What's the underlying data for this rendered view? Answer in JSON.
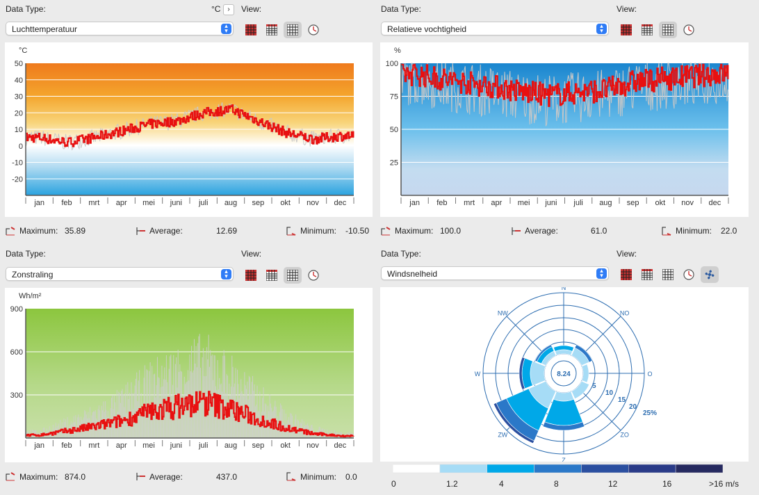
{
  "panels": [
    {
      "data_type_label": "Data Type:",
      "view_label": "View:",
      "unit_label": "°C",
      "unit_arrow": "›",
      "selected": "Luchttemperatuur",
      "unit": "°C",
      "stats": {
        "max_label": "Maximum:",
        "max": "35.89",
        "avg_label": "Average:",
        "avg": "12.69",
        "min_label": "Minimum:",
        "min": "-10.50"
      }
    },
    {
      "data_type_label": "Data Type:",
      "view_label": "View:",
      "selected": "Relatieve vochtigheid",
      "unit": "%",
      "stats": {
        "max_label": "Maximum:",
        "max": "100.0",
        "avg_label": "Average:",
        "avg": "61.0",
        "min_label": "Minimum:",
        "min": "22.0"
      }
    },
    {
      "data_type_label": "Data Type:",
      "view_label": "View:",
      "selected": "Zonstraling",
      "unit": "Wh/m²",
      "stats": {
        "max_label": "Maximum:",
        "max": "874.0",
        "avg_label": "Average:",
        "avg": "437.0",
        "min_label": "Minimum:",
        "min": "0.0"
      }
    },
    {
      "data_type_label": "Data Type:",
      "view_label": "View:",
      "selected": "Windsnelheid",
      "center_value": "8.24",
      "directions": [
        "N",
        "NO",
        "O",
        "ZO",
        "Z",
        "ZW",
        "W",
        "NW"
      ],
      "rings": [
        "5",
        "10",
        "15",
        "20",
        "25%"
      ],
      "legend": [
        "0",
        "1.2",
        "4",
        "8",
        "12",
        "16",
        ">16 m/s"
      ],
      "legend_colors": [
        "#ffffff",
        "#a6dcf6",
        "#00a8e8",
        "#2b78c8",
        "#2b4fa0",
        "#2a3b88",
        "#262a60"
      ]
    }
  ],
  "months": [
    "jan",
    "feb",
    "mrt",
    "apr",
    "mei",
    "juni",
    "juli",
    "aug",
    "sep",
    "okt",
    "nov",
    "dec"
  ],
  "chart_data": [
    {
      "type": "line",
      "title": "",
      "ylabel": "°C",
      "ylim": [
        -30,
        50
      ],
      "yticks": [
        "50",
        "40",
        "30",
        "20",
        "10",
        "0",
        "-10",
        "-20"
      ],
      "categories": [
        "jan",
        "feb",
        "mrt",
        "apr",
        "mei",
        "juni",
        "juli",
        "aug",
        "sep",
        "okt",
        "nov",
        "dec"
      ],
      "series": [
        {
          "values": [
            5,
            2,
            5,
            9,
            13,
            15,
            20,
            22,
            15,
            8,
            4,
            6
          ]
        }
      ]
    },
    {
      "type": "line",
      "title": "",
      "ylabel": "%",
      "ylim": [
        0,
        100
      ],
      "yticks": [
        "100",
        "75",
        "50",
        "25"
      ],
      "categories": [
        "jan",
        "feb",
        "mrt",
        "apr",
        "mei",
        "juni",
        "juli",
        "aug",
        "sep",
        "okt",
        "nov",
        "dec"
      ],
      "series": [
        {
          "values": [
            92,
            88,
            85,
            82,
            78,
            76,
            78,
            80,
            86,
            88,
            90,
            92
          ]
        }
      ]
    },
    {
      "type": "line",
      "title": "",
      "ylabel": "Wh/m²",
      "ylim": [
        0,
        900
      ],
      "yticks": [
        "900",
        "600",
        "300"
      ],
      "categories": [
        "jan",
        "feb",
        "mrt",
        "apr",
        "mei",
        "juni",
        "juli",
        "aug",
        "sep",
        "okt",
        "nov",
        "dec"
      ],
      "series": [
        {
          "values": [
            20,
            50,
            80,
            120,
            180,
            220,
            250,
            200,
            130,
            70,
            30,
            15
          ]
        }
      ]
    }
  ]
}
